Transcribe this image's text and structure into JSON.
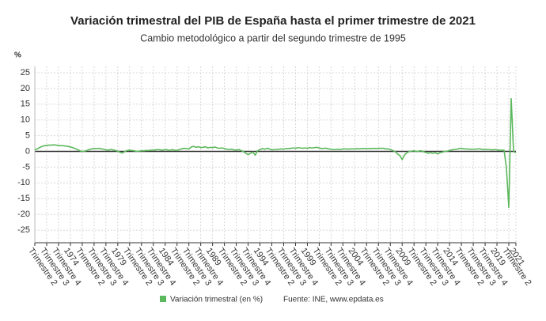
{
  "chart_data": {
    "type": "line",
    "title": "Variación trimestral del PIB de España hasta el primer trimestre de 2021",
    "subtitle": "Cambio metodológico a partir del segundo trimestre de 1995",
    "y_label": "%",
    "source": "Fuente: INE, www.epdata.es",
    "categories": [
      "Trimestre 2",
      null,
      null,
      null,
      null,
      "Trimestre 3",
      null,
      null,
      null,
      null,
      "Trimestre 4",
      null,
      null,
      null,
      null,
      "1974",
      null,
      null,
      null,
      null,
      "Trimestre 2",
      null,
      null,
      null,
      null,
      "Trimestre 3",
      null,
      null,
      null,
      null,
      "Trimestre 4",
      null,
      null,
      null,
      null,
      "1979",
      null,
      null,
      null,
      null,
      "Trimestre 2",
      null,
      null,
      null,
      null,
      "Trimestre 3",
      null,
      null,
      null,
      null,
      "Trimestre 4",
      null,
      null,
      null,
      null,
      "1984",
      null,
      null,
      null,
      null,
      "Trimestre 2",
      null,
      null,
      null,
      null,
      "Trimestre 3",
      null,
      null,
      null,
      null,
      "Trimestre 4",
      null,
      null,
      null,
      null,
      "1989",
      null,
      null,
      null,
      null,
      "Trimestre 2",
      null,
      null,
      null,
      null,
      "Trimestre 3",
      null,
      null,
      null,
      null,
      "Trimestre 4",
      null,
      null,
      null,
      null,
      "1994",
      null,
      null,
      null,
      null,
      "Trimestre 2",
      null,
      null,
      null,
      null,
      "Trimestre 3",
      null,
      null,
      null,
      null,
      "Trimestre 4",
      null,
      null,
      null,
      null,
      "1999",
      null,
      null,
      null,
      null,
      "Trimestre 2",
      null,
      null,
      null,
      null,
      "Trimestre 3",
      null,
      null,
      null,
      null,
      "Trimestre 4",
      null,
      null,
      null,
      null,
      "2004",
      null,
      null,
      null,
      null,
      "Trimestre 2",
      null,
      null,
      null,
      null,
      "Trimestre 3",
      null,
      null,
      null,
      null,
      "Trimestre 4",
      null,
      null,
      null,
      null,
      "2009",
      null,
      null,
      null,
      null,
      "Trimestre 2",
      null,
      null,
      null,
      null,
      "Trimestre 3",
      null,
      null,
      null,
      null,
      "Trimestre 4",
      null,
      null,
      null,
      null,
      "2014",
      null,
      null,
      null,
      null,
      "Trimestre 2",
      null,
      null,
      null,
      null,
      "Trimestre 3",
      null,
      null,
      null,
      null,
      "Trimestre 4",
      null,
      null,
      null,
      null,
      "2019",
      null,
      null,
      null,
      null,
      "Trimestre 2",
      null,
      null,
      "2021"
    ],
    "series": [
      {
        "name": "Variación trimestral (en %)",
        "color": "#5cb85c",
        "values": [
          0.5,
          0.8,
          1.2,
          1.6,
          1.8,
          1.9,
          2.0,
          2.0,
          2.1,
          2.0,
          1.9,
          1.8,
          1.8,
          1.7,
          1.6,
          1.4,
          1.2,
          0.9,
          0.6,
          0.2,
          0.0,
          0.1,
          0.3,
          0.6,
          0.8,
          0.9,
          0.9,
          1.0,
          0.8,
          0.7,
          0.5,
          0.4,
          0.6,
          0.5,
          0.3,
          0.1,
          -0.3,
          -0.5,
          0.0,
          0.3,
          0.4,
          0.3,
          0.2,
          0.0,
          0.1,
          0.2,
          0.2,
          0.3,
          0.3,
          0.4,
          0.4,
          0.5,
          0.6,
          0.5,
          0.4,
          0.6,
          0.5,
          0.3,
          0.6,
          0.4,
          0.3,
          0.6,
          0.8,
          1.0,
          0.9,
          0.8,
          1.4,
          1.6,
          1.3,
          1.5,
          1.2,
          1.3,
          1.5,
          1.1,
          1.3,
          1.2,
          1.4,
          1.1,
          1.0,
          1.1,
          0.9,
          0.7,
          0.6,
          0.7,
          0.5,
          0.4,
          0.6,
          0.3,
          0.0,
          -0.6,
          -1.0,
          -0.6,
          -0.2,
          -1.2,
          0.2,
          0.6,
          0.9,
          0.7,
          1.0,
          0.8,
          0.5,
          0.6,
          0.6,
          0.7,
          0.8,
          0.7,
          0.9,
          0.9,
          1.0,
          1.1,
          1.0,
          1.2,
          1.1,
          1.0,
          1.1,
          1.0,
          1.2,
          1.1,
          1.2,
          1.3,
          1.1,
          0.9,
          1.0,
          1.0,
          0.8,
          0.7,
          0.6,
          0.6,
          0.7,
          0.6,
          0.8,
          0.8,
          0.7,
          0.8,
          0.8,
          0.8,
          0.9,
          0.8,
          0.9,
          0.9,
          0.9,
          0.9,
          0.9,
          1.0,
          0.9,
          1.0,
          1.0,
          1.0,
          0.8,
          0.8,
          0.6,
          0.3,
          0.0,
          -0.8,
          -1.3,
          -2.6,
          -1.1,
          -0.4,
          0.0,
          0.1,
          0.2,
          0.0,
          0.1,
          0.2,
          -0.1,
          -0.3,
          -0.6,
          -0.4,
          -0.6,
          -0.4,
          -0.8,
          -0.4,
          -0.2,
          0.0,
          0.1,
          0.3,
          0.5,
          0.6,
          0.7,
          0.9,
          1.0,
          0.8,
          0.8,
          0.7,
          0.7,
          0.7,
          0.7,
          0.8,
          0.8,
          0.6,
          0.7,
          0.6,
          0.6,
          0.5,
          0.6,
          0.5,
          0.4,
          0.4,
          0.4,
          -5.4,
          -17.8,
          16.8,
          0.0,
          -0.4
        ]
      }
    ],
    "ylim": [
      -29,
      27
    ],
    "yticks": [
      -25,
      -20,
      -15,
      -10,
      -5,
      0,
      5,
      10,
      15,
      20,
      25
    ],
    "grid": true
  }
}
